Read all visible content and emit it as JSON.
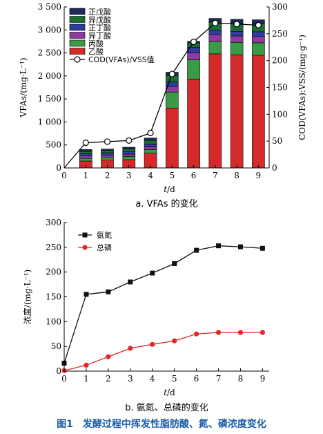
{
  "figure_caption": "图1　发酵过程中挥发性脂肪酸、氮、磷浓度变化",
  "chart_data": [
    {
      "type": "bar",
      "subtitle": "a. VFAs 的变化",
      "xlabel_parts": {
        "var": "t",
        "unit": "/d"
      },
      "ylabel": "VFAs/(mg·L⁻¹)",
      "y2label": "COD(VFAs):VSS/(mg·g⁻¹)",
      "xlim": [
        0,
        9.5
      ],
      "ylim": [
        0,
        3500
      ],
      "y2lim": [
        0,
        300
      ],
      "x_ticks": [
        "0",
        "1",
        "2",
        "3",
        "4",
        "5",
        "6",
        "7",
        "8",
        "9"
      ],
      "y_ticks": [
        "0",
        "500",
        "1 000",
        "1 500",
        "2 000",
        "2 500",
        "3 000",
        "3 500"
      ],
      "y2_ticks": [
        "0",
        "50",
        "100",
        "150",
        "200",
        "250",
        "300"
      ],
      "categories": [
        1,
        2,
        3,
        4,
        5,
        6,
        7,
        8,
        9
      ],
      "stacked": true,
      "series": [
        {
          "name": "乙酸",
          "color": "#d42a2a",
          "values": [
            150,
            170,
            180,
            320,
            1300,
            1930,
            2480,
            2460,
            2450
          ]
        },
        {
          "name": "丙酸",
          "color": "#3a9a46",
          "values": [
            60,
            60,
            70,
            80,
            350,
            420,
            270,
            270,
            270
          ]
        },
        {
          "name": "异丁酸",
          "color": "#8e3aa0",
          "values": [
            50,
            50,
            50,
            60,
            120,
            150,
            150,
            140,
            140
          ]
        },
        {
          "name": "正丁酸",
          "color": "#2f3d9e",
          "values": [
            50,
            50,
            50,
            60,
            100,
            120,
            100,
            100,
            100
          ]
        },
        {
          "name": "异戊酸",
          "color": "#1a6e32",
          "values": [
            50,
            50,
            60,
            80,
            140,
            100,
            170,
            170,
            170
          ]
        },
        {
          "name": "正戊酸",
          "color": "#1c2a5c",
          "values": [
            40,
            30,
            40,
            50,
            70,
            30,
            80,
            90,
            90
          ]
        }
      ],
      "line": {
        "name": "COD(VFAs)/VSS值",
        "axis": "right",
        "x": [
          0,
          1,
          2,
          3,
          4,
          5,
          6,
          7,
          8,
          9
        ],
        "values": [
          0,
          47,
          49,
          51,
          65,
          175,
          235,
          270,
          268,
          266
        ]
      },
      "legend_position": "top-left"
    },
    {
      "type": "line",
      "subtitle": "b. 氨氮、总磷的变化",
      "xlabel_parts": {
        "var": "t",
        "unit": "/d"
      },
      "ylabel": "浓度/(mg·L⁻¹)",
      "xlim": [
        0,
        9.3
      ],
      "ylim": [
        0,
        300
      ],
      "x_ticks": [
        "0",
        "1",
        "2",
        "3",
        "4",
        "5",
        "6",
        "7",
        "8",
        "9"
      ],
      "y_ticks": [
        "0",
        "50",
        "100",
        "150",
        "200",
        "250",
        "300"
      ],
      "series": [
        {
          "name": "氨氮",
          "color": "#111111",
          "marker": "square",
          "x": [
            0,
            1,
            2,
            3,
            4,
            5,
            6,
            7,
            8,
            9
          ],
          "values": [
            16,
            155,
            160,
            180,
            198,
            217,
            244,
            253,
            251,
            248
          ]
        },
        {
          "name": "总磷",
          "color": "#e02828",
          "marker": "circle",
          "x": [
            0,
            1,
            2,
            3,
            4,
            5,
            6,
            7,
            8,
            9
          ],
          "values": [
            1,
            12,
            29,
            46,
            54,
            61,
            75,
            78,
            78,
            78
          ]
        }
      ],
      "legend_position": "top-left"
    }
  ]
}
